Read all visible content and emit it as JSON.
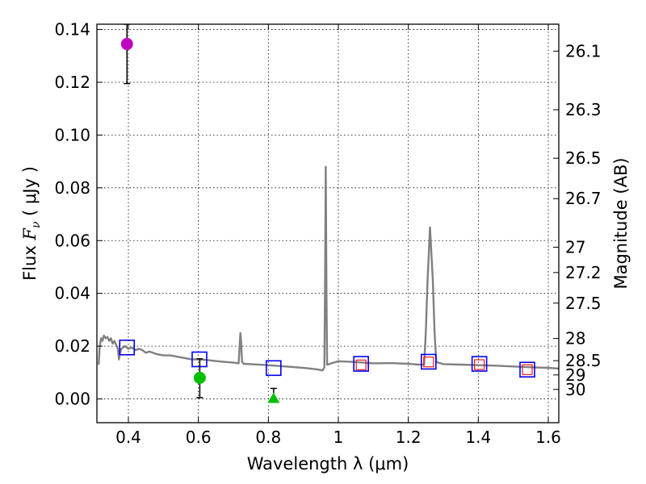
{
  "chart_data": {
    "type": "scatter",
    "xlabel": "Wavelength  λ (μm)",
    "ylabel_left": "Flux  F_ν  ( μJy )",
    "ylabel_right": "Magnitude (AB)",
    "xlim": [
      0.31,
      1.63
    ],
    "ylim": [
      -0.009,
      0.142
    ],
    "x_ticks": [
      0.4,
      0.6,
      0.8,
      1.0,
      1.2,
      1.4,
      1.6
    ],
    "x_tick_labels": [
      "0.4",
      "0.6",
      "0.8",
      "1",
      "1.2",
      "1.4",
      "1.6"
    ],
    "y_ticks": [
      0.0,
      0.02,
      0.04,
      0.06,
      0.08,
      0.1,
      0.12,
      0.14
    ],
    "y_tick_labels": [
      "0.00",
      "0.02",
      "0.04",
      "0.06",
      "0.08",
      "0.10",
      "0.12",
      "0.14"
    ],
    "magnitude_ticks": [
      {
        "label": "26.1",
        "flux": 0.1318
      },
      {
        "label": "26.3",
        "flux": 0.1096
      },
      {
        "label": "26.5",
        "flux": 0.0912
      },
      {
        "label": "26.7",
        "flux": 0.0759
      },
      {
        "label": "27",
        "flux": 0.0575
      },
      {
        "label": "27.2",
        "flux": 0.0479
      },
      {
        "label": "27.5",
        "flux": 0.0363
      },
      {
        "label": "28",
        "flux": 0.0229
      },
      {
        "label": "28.5",
        "flux": 0.0145
      },
      {
        "label": "29",
        "flux": 0.0091
      },
      {
        "label": "30",
        "flux": 0.0036
      }
    ],
    "grid": true,
    "series": [
      {
        "name": "model-spectrum",
        "style": "line",
        "color": "#808080",
        "x": [
          0.315,
          0.318,
          0.322,
          0.326,
          0.33,
          0.335,
          0.34,
          0.345,
          0.35,
          0.355,
          0.36,
          0.365,
          0.37,
          0.373,
          0.376,
          0.38,
          0.39,
          0.4,
          0.41,
          0.42,
          0.43,
          0.44,
          0.45,
          0.46,
          0.48,
          0.5,
          0.52,
          0.54,
          0.56,
          0.58,
          0.6,
          0.62,
          0.64,
          0.66,
          0.68,
          0.7,
          0.715,
          0.72,
          0.722,
          0.725,
          0.73,
          0.75,
          0.8,
          0.85,
          0.9,
          0.94,
          0.955,
          0.96,
          0.962,
          0.964,
          0.966,
          0.968,
          0.97,
          0.98,
          1.0,
          1.05,
          1.1,
          1.15,
          1.2,
          1.23,
          1.245,
          1.25,
          1.255,
          1.262,
          1.27,
          1.275,
          1.28,
          1.3,
          1.35,
          1.4,
          1.45,
          1.5,
          1.55,
          1.6,
          1.63
        ],
        "y": [
          0.013,
          0.02,
          0.023,
          0.022,
          0.024,
          0.023,
          0.0235,
          0.022,
          0.023,
          0.021,
          0.022,
          0.0205,
          0.019,
          0.015,
          0.0175,
          0.019,
          0.02,
          0.019,
          0.0195,
          0.0185,
          0.019,
          0.0185,
          0.0175,
          0.018,
          0.017,
          0.0165,
          0.0165,
          0.016,
          0.0155,
          0.015,
          0.015,
          0.0148,
          0.0145,
          0.0142,
          0.014,
          0.0138,
          0.0135,
          0.025,
          0.022,
          0.014,
          0.0133,
          0.0132,
          0.0128,
          0.0123,
          0.0118,
          0.0112,
          0.0108,
          0.012,
          0.04,
          0.088,
          0.04,
          0.013,
          0.013,
          0.0135,
          0.0143,
          0.014,
          0.0135,
          0.0136,
          0.0133,
          0.013,
          0.013,
          0.025,
          0.045,
          0.065,
          0.045,
          0.025,
          0.014,
          0.0132,
          0.013,
          0.0128,
          0.0126,
          0.0123,
          0.012,
          0.0118,
          0.0115
        ]
      },
      {
        "name": "filter-average-blue-squares",
        "style": "square",
        "color": "#0000ff",
        "x": [
          0.396,
          0.603,
          0.815,
          1.065,
          1.258,
          1.403,
          1.54
        ],
        "y": [
          0.0195,
          0.015,
          0.0117,
          0.0133,
          0.0141,
          0.0133,
          0.0111
        ]
      },
      {
        "name": "filter-average-red-squares",
        "style": "square-small",
        "color": "#ff0000",
        "x": [
          1.065,
          1.258,
          1.403,
          1.54
        ],
        "y": [
          0.0129,
          0.014,
          0.013,
          0.0111
        ]
      },
      {
        "name": "observed-magenta",
        "style": "circle",
        "color": "#bf00bf",
        "x": [
          0.396
        ],
        "y": [
          0.1345
        ],
        "err_low": [
          0.1195
        ],
        "err_high": [
          0.142
        ]
      },
      {
        "name": "observed-green",
        "style": "circle",
        "color": "#00bf00",
        "x": [
          0.604
        ],
        "y": [
          0.008
        ],
        "err_low": [
          0.0005
        ],
        "err_high": [
          0.0152
        ]
      },
      {
        "name": "upper-limit-green",
        "style": "triangle",
        "color": "#00bf00",
        "x": [
          0.815
        ],
        "y": [
          0.0
        ],
        "err_low": [
          0.0
        ],
        "err_high": [
          0.004
        ]
      }
    ]
  }
}
